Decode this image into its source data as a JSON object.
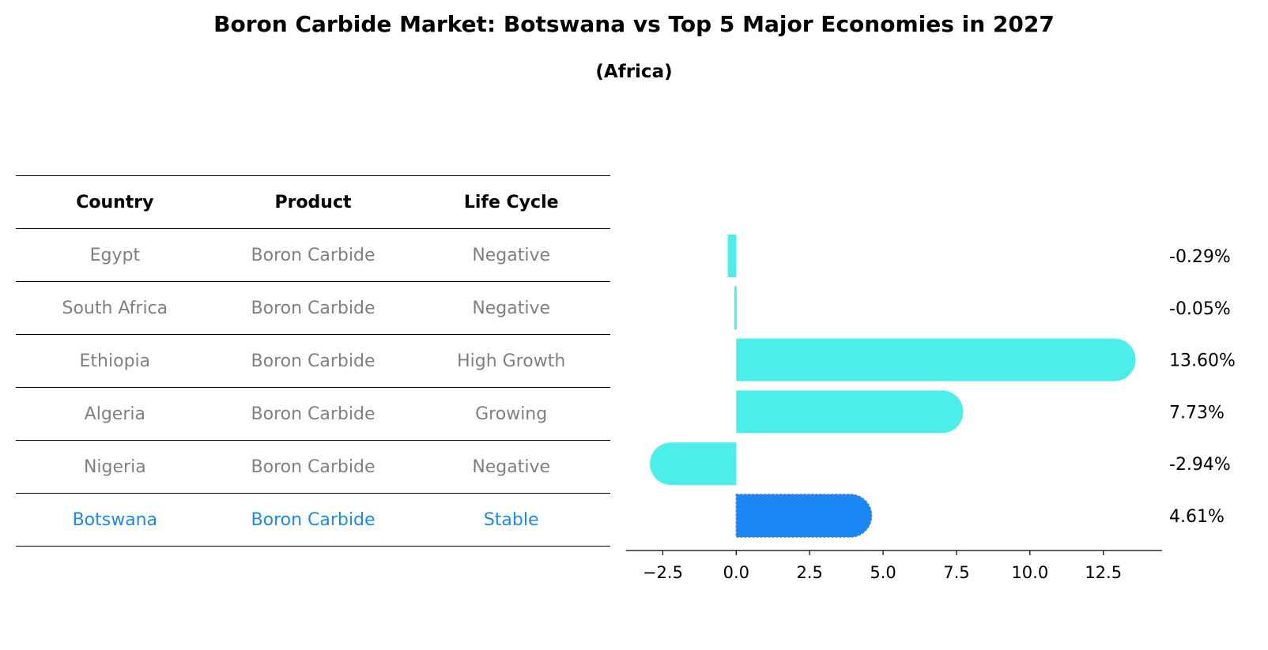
{
  "title": "Boron Carbide Market: Botswana vs Top 5 Major Economies in 2027",
  "subtitle": "(Africa)",
  "table": {
    "headers": [
      "Country",
      "Product",
      "Life Cycle"
    ],
    "rows": [
      {
        "country": "Egypt",
        "product": "Boron Carbide",
        "life_cycle": "Negative"
      },
      {
        "country": "South Africa",
        "product": "Boron Carbide",
        "life_cycle": "Negative"
      },
      {
        "country": "Ethiopia",
        "product": "Boron Carbide",
        "life_cycle": "High Growth"
      },
      {
        "country": "Algeria",
        "product": "Boron Carbide",
        "life_cycle": "Growing"
      },
      {
        "country": "Nigeria",
        "product": "Boron Carbide",
        "life_cycle": "Negative"
      },
      {
        "country": "Botswana",
        "product": "Boron Carbide",
        "life_cycle": "Stable"
      }
    ]
  },
  "colors": {
    "bar": "#4dede9",
    "highlight": "#1a87f5",
    "highlight_text": "#1e88e5",
    "muted_text": "#808080"
  },
  "chart_data": {
    "type": "bar",
    "orientation": "horizontal",
    "categories": [
      "Egypt",
      "South Africa",
      "Ethiopia",
      "Algeria",
      "Nigeria",
      "Botswana"
    ],
    "values": [
      -0.29,
      -0.05,
      13.6,
      7.73,
      -2.94,
      4.61
    ],
    "value_labels": [
      "-0.29%",
      "-0.05%",
      "13.60%",
      "7.73%",
      "-2.94%",
      "4.61%"
    ],
    "highlight": "Botswana",
    "xlim": [
      -3.75,
      14.5
    ],
    "xticks": [
      -2.5,
      0.0,
      2.5,
      5.0,
      7.5,
      10.0,
      12.5
    ],
    "xtick_labels": [
      "−2.5",
      "0.0",
      "2.5",
      "5.0",
      "7.5",
      "10.0",
      "12.5"
    ],
    "grid": false
  }
}
